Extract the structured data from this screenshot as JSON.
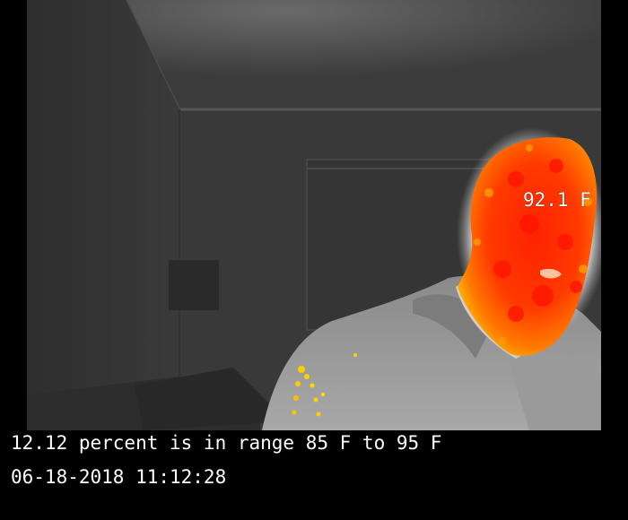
{
  "camera": {
    "spot_temperature": "92.1 F",
    "range_summary": "12.12 percent is in range 85 F to 95 F",
    "timestamp": "06-18-2018 11:12:28"
  },
  "colors": {
    "background": "#000000",
    "overlay_text": "#ffffff",
    "hot_highlight": "#ff2a00",
    "warm_highlight": "#ffcc00"
  }
}
